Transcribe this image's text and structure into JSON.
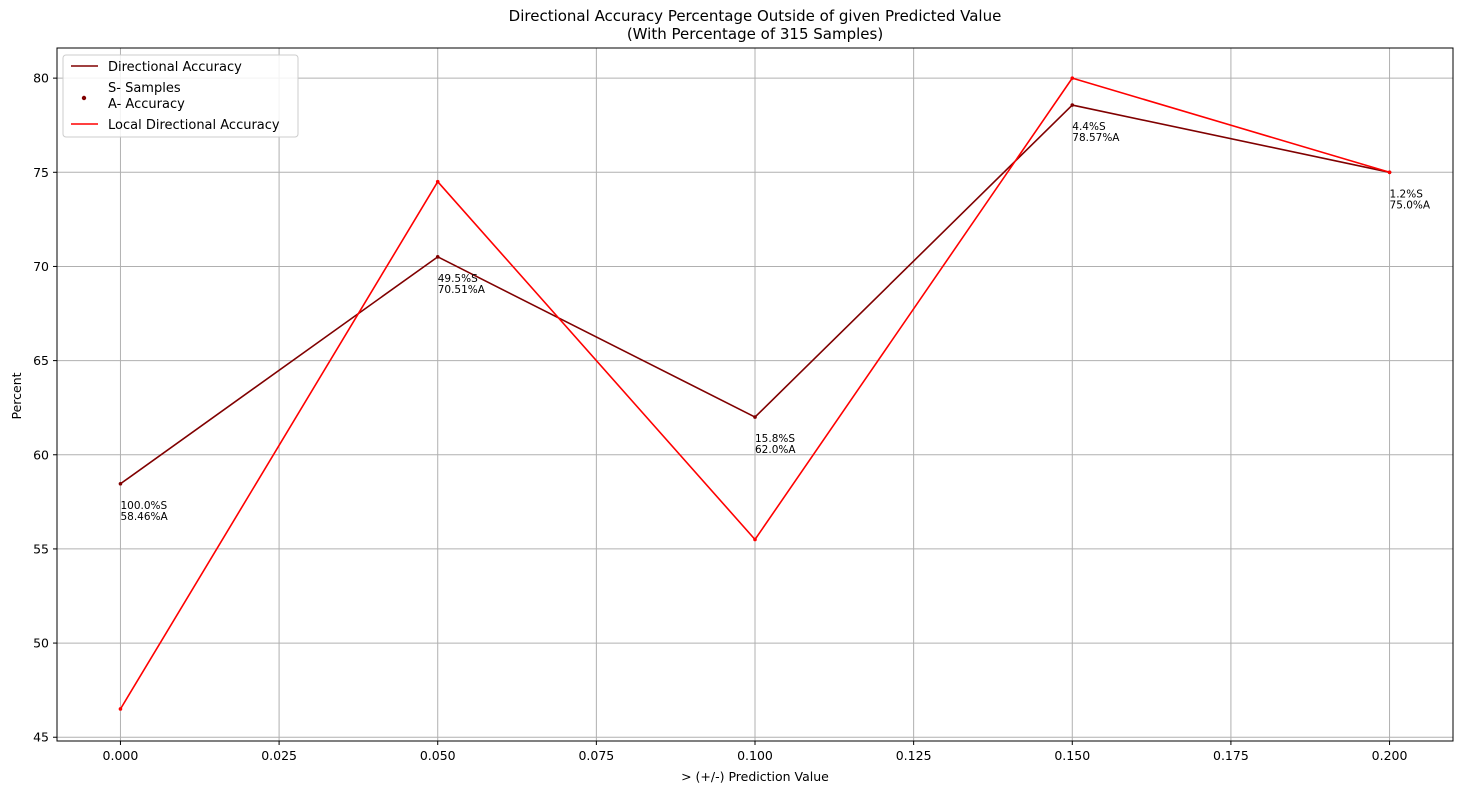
{
  "chart_data": {
    "type": "line",
    "title": "Directional Accuracy Percentage Outside of given Predicted Value",
    "subtitle": "(With Percentage of 315 Samples)",
    "xlabel": "> (+/-) Prediction Value",
    "ylabel": "Percent",
    "xlim": [
      -0.01,
      0.21
    ],
    "ylim": [
      44.8,
      81.6
    ],
    "xticks": [
      0.0,
      0.025,
      0.05,
      0.075,
      0.1,
      0.125,
      0.15,
      0.175,
      0.2
    ],
    "xtick_labels": [
      "0.000",
      "0.025",
      "0.050",
      "0.075",
      "0.100",
      "0.125",
      "0.150",
      "0.175",
      "0.200"
    ],
    "yticks": [
      45,
      50,
      55,
      60,
      65,
      70,
      75,
      80
    ],
    "ytick_labels": [
      "45",
      "50",
      "55",
      "60",
      "65",
      "70",
      "75",
      "80"
    ],
    "grid": true,
    "legend_position": "top-left",
    "x": [
      0.0,
      0.05,
      0.1,
      0.15,
      0.2
    ],
    "series": [
      {
        "name": "Directional Accuracy",
        "color": "#800000",
        "style": "line",
        "values": [
          58.46,
          70.51,
          62.0,
          78.57,
          75.0
        ]
      },
      {
        "name": "Local Directional Accuracy",
        "color": "#ff0000",
        "style": "line",
        "values": [
          46.5,
          74.5,
          55.5,
          80.0,
          75.0
        ]
      }
    ],
    "marker_legend": {
      "color": "#800000",
      "lines": [
        "S- Samples",
        "A- Accuracy"
      ]
    },
    "annotations": [
      {
        "x": 0.0,
        "y": 58.46,
        "lines": [
          "100.0%S",
          "58.46%A"
        ]
      },
      {
        "x": 0.05,
        "y": 70.51,
        "lines": [
          "49.5%S",
          "70.51%A"
        ]
      },
      {
        "x": 0.1,
        "y": 62.0,
        "lines": [
          "15.8%S",
          "62.0%A"
        ]
      },
      {
        "x": 0.15,
        "y": 78.57,
        "lines": [
          "4.4%S",
          "78.57%A"
        ]
      },
      {
        "x": 0.2,
        "y": 75.0,
        "lines": [
          "1.2%S",
          "75.0%A"
        ]
      }
    ]
  }
}
